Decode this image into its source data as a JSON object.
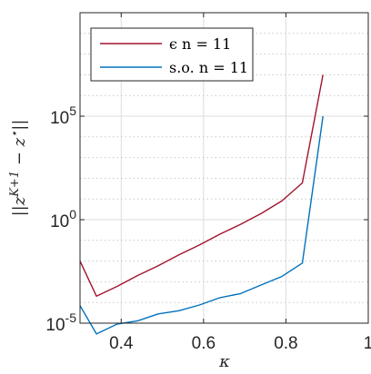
{
  "chart_data": {
    "type": "line",
    "xlabel": "κ",
    "ylabel": "||z^{K+1} − z*||",
    "y_scale": "log",
    "xlim": [
      0.3,
      1.0
    ],
    "ylim": [
      1e-05,
      10000000000.0
    ],
    "x_ticks": [
      0.4,
      0.6,
      0.8,
      1.0
    ],
    "x_tick_labels": [
      "0.4",
      "0.6",
      "0.8",
      "1"
    ],
    "y_ticks": [
      1e-05,
      1,
      100000.0
    ],
    "y_tick_labels": [
      "10^-5",
      "10^0",
      "10^5"
    ],
    "grid": true,
    "legend_position": "top-left",
    "series": [
      {
        "name": "ϵ n = 11",
        "color": "#a2142f",
        "x": [
          0.3,
          0.34,
          0.39,
          0.44,
          0.49,
          0.54,
          0.59,
          0.64,
          0.69,
          0.74,
          0.79,
          0.84,
          0.89
        ],
        "y": [
          0.01,
          0.0002,
          0.0006,
          0.002,
          0.006,
          0.02,
          0.06,
          0.2,
          0.6,
          2,
          8,
          60,
          10000000
        ]
      },
      {
        "name": "s.o. n = 11",
        "color": "#0072bd",
        "x": [
          0.3,
          0.34,
          0.39,
          0.44,
          0.49,
          0.54,
          0.59,
          0.64,
          0.69,
          0.74,
          0.79,
          0.84,
          0.89
        ],
        "y": [
          7e-05,
          3e-06,
          9e-06,
          1.3e-05,
          2.8e-05,
          4e-05,
          7.5e-05,
          0.00017,
          0.00027,
          0.0007,
          0.0018,
          0.008,
          100000
        ]
      }
    ]
  }
}
